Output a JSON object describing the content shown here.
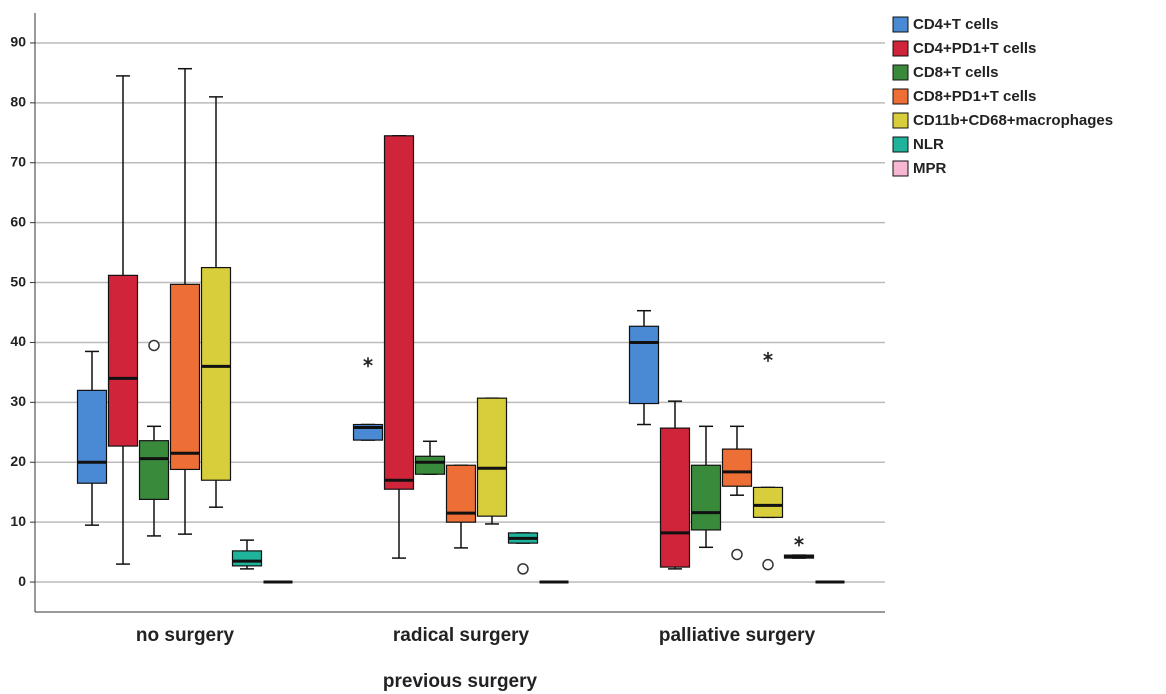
{
  "chart_data": {
    "type": "box",
    "x_label": "previous surgery",
    "categories": [
      "no surgery",
      "radical surgery",
      "palliative surgery"
    ],
    "ylim": [
      -5,
      95
    ],
    "yticks": [
      0,
      10,
      20,
      30,
      40,
      50,
      60,
      70,
      80,
      90
    ],
    "grid": true,
    "legend": "top-right",
    "series": [
      {
        "name": "CD4+T cells",
        "color": "#4a89d4",
        "boxes": [
          {
            "min": 9.5,
            "q1": 16.5,
            "median": 20,
            "q3": 32,
            "max": 38.5
          },
          {
            "min": 23.7,
            "q1": 23.7,
            "median": 25.8,
            "q3": 26.3,
            "max": 26.3,
            "extremes": [
              36.7
            ]
          },
          {
            "min": 26.3,
            "q1": 29.8,
            "median": 40,
            "q3": 42.7,
            "max": 45.3
          }
        ]
      },
      {
        "name": "CD4+PD1+T cells",
        "color": "#d0243a",
        "boxes": [
          {
            "min": 3,
            "q1": 22.7,
            "median": 34,
            "q3": 51.2,
            "max": 84.5
          },
          {
            "min": 4,
            "q1": 15.5,
            "median": 17,
            "q3": 74.5,
            "max": 74.5
          },
          {
            "min": 2.2,
            "q1": 2.5,
            "median": 8.2,
            "q3": 25.7,
            "max": 30.2
          }
        ]
      },
      {
        "name": "CD8+T cells",
        "color": "#3a8a3c",
        "boxes": [
          {
            "min": 7.7,
            "q1": 13.8,
            "median": 20.6,
            "q3": 23.6,
            "max": 26,
            "outliers": [
              39.5
            ]
          },
          {
            "min": 18,
            "q1": 18,
            "median": 20,
            "q3": 21,
            "max": 23.5
          },
          {
            "min": 5.8,
            "q1": 8.7,
            "median": 11.6,
            "q3": 19.5,
            "max": 26
          }
        ]
      },
      {
        "name": "CD8+PD1+T cells",
        "color": "#ee6f36",
        "boxes": [
          {
            "min": 8,
            "q1": 18.8,
            "median": 21.5,
            "q3": 49.7,
            "max": 85.7
          },
          {
            "min": 5.7,
            "q1": 10,
            "median": 11.5,
            "q3": 19.5,
            "max": 19.5
          },
          {
            "min": 14.5,
            "q1": 16,
            "median": 18.4,
            "q3": 22.2,
            "max": 26,
            "outliers": [
              4.6
            ]
          }
        ]
      },
      {
        "name": "CD11b+CD68+macrophages",
        "color": "#d8cd3a",
        "boxes": [
          {
            "min": 12.5,
            "q1": 17,
            "median": 36,
            "q3": 52.5,
            "max": 81
          },
          {
            "min": 9.7,
            "q1": 11,
            "median": 19,
            "q3": 30.7,
            "max": 30.7
          },
          {
            "min": 10.8,
            "q1": 10.8,
            "median": 12.8,
            "q3": 15.8,
            "max": 15.8,
            "outliers": [
              2.9
            ],
            "extremes": [
              37.6
            ]
          }
        ]
      },
      {
        "name": "NLR",
        "color": "#1fb39c",
        "boxes": [
          {
            "min": 2.2,
            "q1": 2.7,
            "median": 3.5,
            "q3": 5.2,
            "max": 7
          },
          {
            "min": 6.5,
            "q1": 6.5,
            "median": 7.3,
            "q3": 8.2,
            "max": 8.2,
            "outliers": [
              2.2
            ]
          },
          {
            "min": 4,
            "q1": 4,
            "median": 4.3,
            "q3": 4.5,
            "max": 4.5,
            "extremes": [
              6.8
            ]
          }
        ]
      },
      {
        "name": "MPR",
        "color": "#f7b6d2",
        "boxes": [
          {
            "min": 0,
            "q1": 0,
            "median": 0,
            "q3": 0,
            "max": 0
          },
          {
            "min": 0,
            "q1": 0,
            "median": 0,
            "q3": 0,
            "max": 0
          },
          {
            "min": 0,
            "q1": 0,
            "median": 0,
            "q3": 0,
            "max": 0
          }
        ]
      }
    ]
  }
}
